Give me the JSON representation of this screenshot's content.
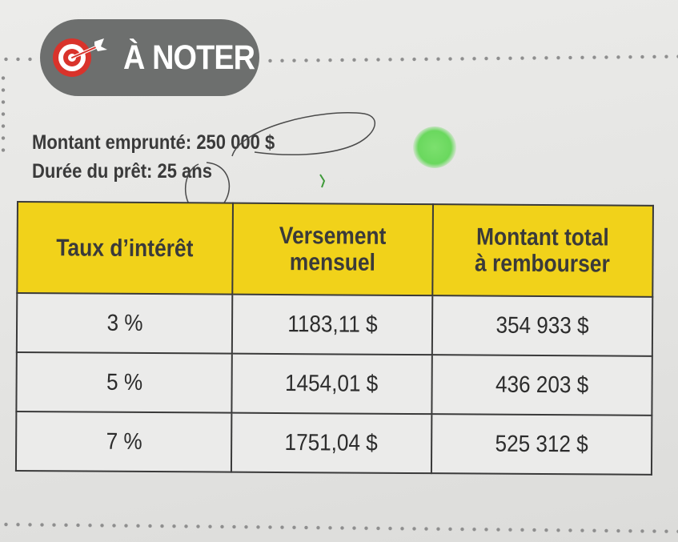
{
  "banner": {
    "label": "À NOTER",
    "icon": "target-icon"
  },
  "loan": {
    "amount_line": "Montant emprunté: 250 000 $",
    "duration_line": "Durée du prêt: 25 ans"
  },
  "table": {
    "headers": [
      "Taux d’intérêt",
      "Versement mensuel",
      "Montant total à rembourser"
    ],
    "header_lines": [
      [
        "Taux d’intérêt"
      ],
      [
        "Versement",
        "mensuel"
      ],
      [
        "Montant total",
        "à rembourser"
      ]
    ],
    "rows": [
      [
        "3 %",
        "1183,11 $",
        "354 933 $"
      ],
      [
        "5 %",
        "1454,01 $",
        "436 203 $"
      ],
      [
        "7 %",
        "1751,04 $",
        "525 312 $"
      ]
    ]
  },
  "colors": {
    "banner": "#6d6f6e",
    "header": "#f1d21a",
    "target_red": "#d9332b",
    "highlighter": "#6ad85e"
  }
}
